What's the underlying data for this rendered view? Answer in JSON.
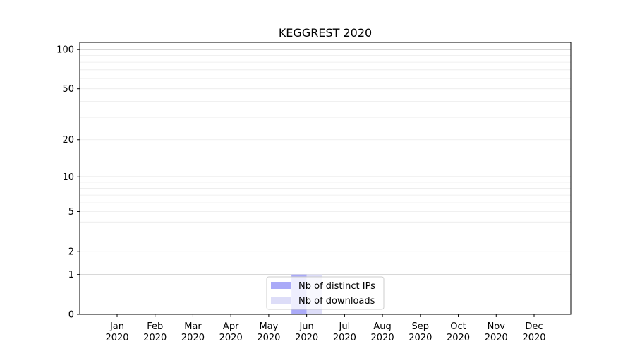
{
  "chart_data": {
    "type": "bar",
    "title": "KEGGREST 2020",
    "xlabel": "",
    "ylabel": "",
    "yscale": "log(1+y)",
    "ylim": [
      0,
      110
    ],
    "yticks": [
      0,
      1,
      2,
      5,
      10,
      20,
      50,
      100
    ],
    "categories": [
      "Jan\n2020",
      "Feb\n2020",
      "Mar\n2020",
      "Apr\n2020",
      "May\n2020",
      "Jun\n2020",
      "Jul\n2020",
      "Aug\n2020",
      "Sep\n2020",
      "Oct\n2020",
      "Nov\n2020",
      "Dec\n2020"
    ],
    "series": [
      {
        "name": "Nb of distinct IPs",
        "color": "#aaaaf8",
        "values": [
          0,
          0,
          0,
          0,
          0,
          1,
          0,
          0,
          0,
          0,
          0,
          0
        ]
      },
      {
        "name": "Nb of downloads",
        "color": "#ddddf8",
        "values": [
          0,
          0,
          0,
          0,
          0,
          1,
          0,
          0,
          0,
          0,
          0,
          0
        ]
      }
    ],
    "grid": true,
    "legend_position": "bottom-center"
  }
}
